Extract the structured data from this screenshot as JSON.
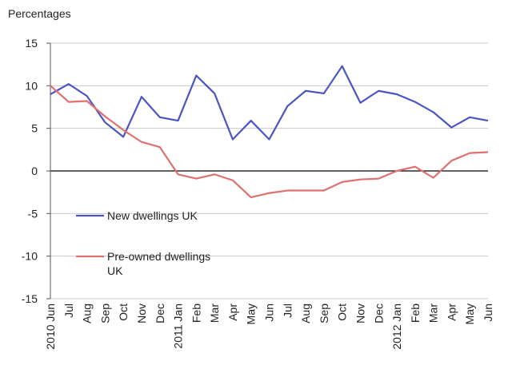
{
  "chart_data": {
    "type": "line",
    "ylabel": "Percentages",
    "categories": [
      "2010 Jun",
      "Jul",
      "Aug",
      "Sep",
      "Oct",
      "Nov",
      "Dec",
      "2011 Jan",
      "Feb",
      "Mar",
      "Apr",
      "May",
      "Jun",
      "Jul",
      "Aug",
      "Sep",
      "Oct",
      "Nov",
      "Dec",
      "2012 Jan",
      "Feb",
      "Mar",
      "Apr",
      "May",
      "Jun"
    ],
    "series": [
      {
        "name": "New dwellings  UK",
        "color": "#4a55c4",
        "values": [
          9.0,
          10.2,
          8.8,
          5.7,
          4.0,
          8.7,
          6.3,
          5.9,
          11.2,
          9.1,
          3.7,
          5.9,
          3.7,
          7.6,
          9.4,
          9.1,
          12.3,
          8.0,
          9.4,
          9.0,
          8.1,
          6.9,
          5.1,
          6.3,
          5.9
        ]
      },
      {
        "name": "Pre-owned dwellings UK",
        "color": "#e07070",
        "values": [
          10.0,
          8.1,
          8.2,
          6.4,
          4.8,
          3.4,
          2.8,
          -0.4,
          -0.9,
          -0.4,
          -1.1,
          -3.1,
          -2.6,
          -2.3,
          -2.3,
          -2.3,
          -1.3,
          -1.0,
          -0.9,
          0.0,
          0.5,
          -0.8,
          1.2,
          2.1,
          2.2
        ]
      }
    ],
    "ylim": [
      -15,
      15
    ],
    "yticks": [
      -15,
      -10,
      -5,
      0,
      5,
      10,
      15
    ],
    "grid": true
  }
}
